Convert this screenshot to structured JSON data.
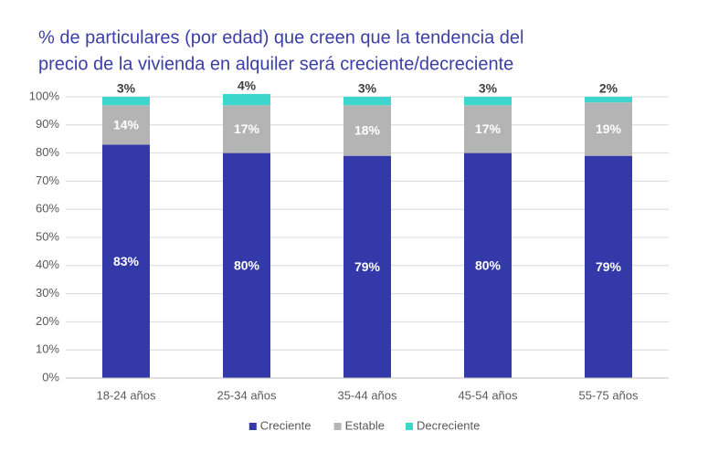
{
  "chart_data": {
    "type": "stacked-bar",
    "title": [
      "% de particulares (por edad) que creen que la tendencia del",
      "precio de la vivienda en alquiler será creciente/decreciente"
    ],
    "categories": [
      "18-24 años",
      "25-34 años",
      "35-44 años",
      "45-54 años",
      "55-75 años"
    ],
    "series": [
      {
        "name": "Creciente",
        "color": "#3339a8",
        "values": [
          83,
          80,
          79,
          80,
          79
        ],
        "value_labels": [
          "83%",
          "80%",
          "79%",
          "80%",
          "79%"
        ]
      },
      {
        "name": "Estable",
        "color": "#b4b4b4",
        "values": [
          14,
          17,
          18,
          17,
          19
        ],
        "value_labels": [
          "14%",
          "17%",
          "18%",
          "17%",
          "19%"
        ]
      },
      {
        "name": "Decreciente",
        "color": "#3dd6cc",
        "values": [
          3,
          4,
          3,
          3,
          2
        ],
        "value_labels": [
          "3%",
          "4%",
          "3%",
          "3%",
          "2%"
        ]
      }
    ],
    "ylim": [
      0,
      100
    ],
    "yticks": [
      {
        "value": 0,
        "label": "0%"
      },
      {
        "value": 10,
        "label": "10%"
      },
      {
        "value": 20,
        "label": "20%"
      },
      {
        "value": 30,
        "label": "30%"
      },
      {
        "value": 40,
        "label": "40%"
      },
      {
        "value": 50,
        "label": "50%"
      },
      {
        "value": 60,
        "label": "60%"
      },
      {
        "value": 70,
        "label": "70%"
      },
      {
        "value": 80,
        "label": "80%"
      },
      {
        "value": 90,
        "label": "90%"
      },
      {
        "value": 100,
        "label": "100%"
      }
    ],
    "grid": true,
    "legend": "bottom"
  }
}
